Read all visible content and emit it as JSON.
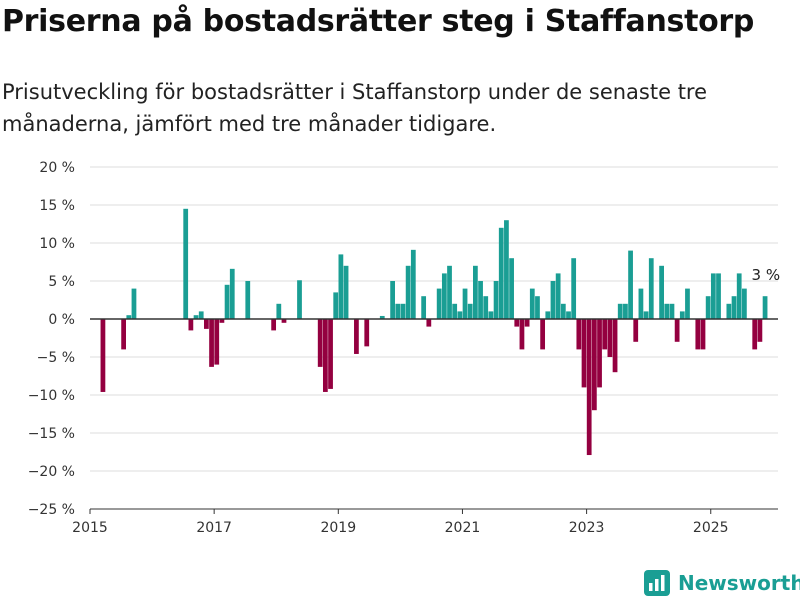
{
  "title": "Priserna på bostadsrätter steg i Staffanstorp",
  "subtitle": "Prisutveckling för bostadsrätter i Staffanstorp under de senaste tre månaderna, jämfört med tre månader tidigare.",
  "brand": {
    "name": "Newsworthy",
    "icon": "bar-chart-logo-icon",
    "color": "#1a9e94"
  },
  "colors": {
    "positive": "#1a9e94",
    "negative": "#940040",
    "grid": "#dcdcdc",
    "zero_line": "#333333"
  },
  "chart_data": {
    "type": "bar",
    "ylim": [
      -25,
      20
    ],
    "y_ticks": [
      {
        "value": 20,
        "label": "20 %"
      },
      {
        "value": 15,
        "label": "15 %"
      },
      {
        "value": 10,
        "label": "10 %"
      },
      {
        "value": 5,
        "label": "5 %"
      },
      {
        "value": 0,
        "label": "0 %"
      },
      {
        "value": -5,
        "label": "−5 %"
      },
      {
        "value": -10,
        "label": "−10 %"
      },
      {
        "value": -15,
        "label": "−15 %"
      },
      {
        "value": -20,
        "label": "−20 %"
      },
      {
        "value": -25,
        "label": "−25 %"
      }
    ],
    "x_ticks": [
      "2015",
      "2017",
      "2019",
      "2021",
      "2023",
      "2025"
    ],
    "x_start": "2015-01",
    "x_end": "2026-02",
    "annotation": "3 %",
    "series": [
      {
        "points": [
          {
            "x": "2015-03",
            "y": -9.6
          },
          {
            "x": "2015-07",
            "y": -4
          },
          {
            "x": "2015-08",
            "y": 0.5
          },
          {
            "x": "2015-09",
            "y": 4
          },
          {
            "x": "2016-07",
            "y": 14.5
          },
          {
            "x": "2016-08",
            "y": -1.5
          },
          {
            "x": "2016-09",
            "y": 0.5
          },
          {
            "x": "2016-10",
            "y": 1
          },
          {
            "x": "2016-11",
            "y": -1.3
          },
          {
            "x": "2016-12",
            "y": -6.3
          },
          {
            "x": "2017-01",
            "y": -6
          },
          {
            "x": "2017-02",
            "y": -0.5
          },
          {
            "x": "2017-03",
            "y": 4.5
          },
          {
            "x": "2017-04",
            "y": 6.6
          },
          {
            "x": "2017-07",
            "y": 5
          },
          {
            "x": "2017-12",
            "y": -1.5
          },
          {
            "x": "2018-01",
            "y": 2
          },
          {
            "x": "2018-02",
            "y": -0.5
          },
          {
            "x": "2018-05",
            "y": 5.1
          },
          {
            "x": "2018-09",
            "y": -6.3
          },
          {
            "x": "2018-10",
            "y": -9.6
          },
          {
            "x": "2018-11",
            "y": -9.2
          },
          {
            "x": "2018-12",
            "y": 3.5
          },
          {
            "x": "2019-01",
            "y": 8.5
          },
          {
            "x": "2019-02",
            "y": 7
          },
          {
            "x": "2019-04",
            "y": -4.6
          },
          {
            "x": "2019-06",
            "y": -3.6
          },
          {
            "x": "2019-09",
            "y": 0.4
          },
          {
            "x": "2019-11",
            "y": 5
          },
          {
            "x": "2019-12",
            "y": 2
          },
          {
            "x": "2020-01",
            "y": 2
          },
          {
            "x": "2020-02",
            "y": 7
          },
          {
            "x": "2020-03",
            "y": 9.1
          },
          {
            "x": "2020-05",
            "y": 3
          },
          {
            "x": "2020-06",
            "y": -1
          },
          {
            "x": "2020-08",
            "y": 4
          },
          {
            "x": "2020-09",
            "y": 6
          },
          {
            "x": "2020-10",
            "y": 7
          },
          {
            "x": "2020-11",
            "y": 2
          },
          {
            "x": "2020-12",
            "y": 1
          },
          {
            "x": "2021-01",
            "y": 4
          },
          {
            "x": "2021-02",
            "y": 2
          },
          {
            "x": "2021-03",
            "y": 7
          },
          {
            "x": "2021-04",
            "y": 5
          },
          {
            "x": "2021-05",
            "y": 3
          },
          {
            "x": "2021-06",
            "y": 1
          },
          {
            "x": "2021-07",
            "y": 5
          },
          {
            "x": "2021-08",
            "y": 12
          },
          {
            "x": "2021-09",
            "y": 13
          },
          {
            "x": "2021-10",
            "y": 8
          },
          {
            "x": "2021-11",
            "y": -1
          },
          {
            "x": "2021-12",
            "y": -4
          },
          {
            "x": "2022-01",
            "y": -1
          },
          {
            "x": "2022-02",
            "y": 4
          },
          {
            "x": "2022-03",
            "y": 3
          },
          {
            "x": "2022-04",
            "y": -4
          },
          {
            "x": "2022-05",
            "y": 1
          },
          {
            "x": "2022-06",
            "y": 5
          },
          {
            "x": "2022-07",
            "y": 6
          },
          {
            "x": "2022-08",
            "y": 2
          },
          {
            "x": "2022-09",
            "y": 1
          },
          {
            "x": "2022-10",
            "y": 8
          },
          {
            "x": "2022-11",
            "y": -4
          },
          {
            "x": "2022-12",
            "y": -9
          },
          {
            "x": "2023-01",
            "y": -17.9
          },
          {
            "x": "2023-02",
            "y": -12
          },
          {
            "x": "2023-03",
            "y": -9
          },
          {
            "x": "2023-04",
            "y": -4
          },
          {
            "x": "2023-05",
            "y": -5
          },
          {
            "x": "2023-06",
            "y": -7
          },
          {
            "x": "2023-07",
            "y": 2
          },
          {
            "x": "2023-08",
            "y": 2
          },
          {
            "x": "2023-09",
            "y": 9
          },
          {
            "x": "2023-10",
            "y": -3
          },
          {
            "x": "2023-11",
            "y": 4
          },
          {
            "x": "2023-12",
            "y": 1
          },
          {
            "x": "2024-01",
            "y": 8
          },
          {
            "x": "2024-03",
            "y": 7
          },
          {
            "x": "2024-04",
            "y": 2
          },
          {
            "x": "2024-05",
            "y": 2
          },
          {
            "x": "2024-06",
            "y": -3
          },
          {
            "x": "2024-07",
            "y": 1
          },
          {
            "x": "2024-08",
            "y": 4
          },
          {
            "x": "2024-10",
            "y": -4
          },
          {
            "x": "2024-11",
            "y": -4
          },
          {
            "x": "2024-12",
            "y": 3
          },
          {
            "x": "2025-01",
            "y": 6
          },
          {
            "x": "2025-02",
            "y": 6
          },
          {
            "x": "2025-04",
            "y": 2
          },
          {
            "x": "2025-05",
            "y": 3
          },
          {
            "x": "2025-06",
            "y": 6
          },
          {
            "x": "2025-07",
            "y": 4
          },
          {
            "x": "2025-09",
            "y": -4
          },
          {
            "x": "2025-10",
            "y": -3
          },
          {
            "x": "2025-11",
            "y": 3
          }
        ]
      }
    ]
  }
}
